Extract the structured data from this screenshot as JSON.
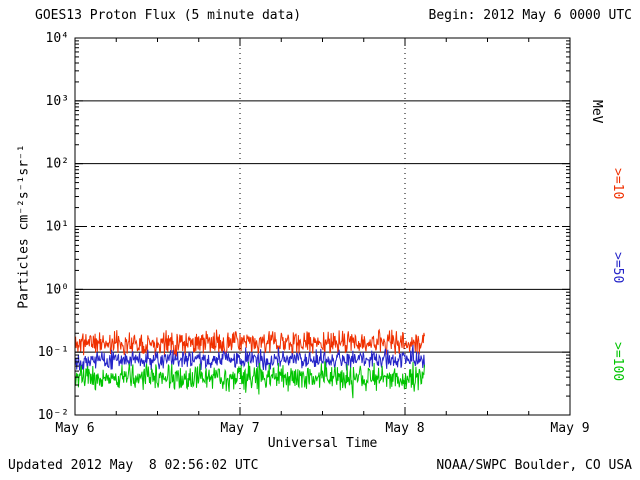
{
  "header": {
    "title": "GOES13 Proton Flux (5 minute data)",
    "begin_label": "Begin: 2012 May 6 0000 UTC"
  },
  "footer": {
    "updated": "Updated 2012 May  8 02:56:02 UTC",
    "source": "NOAA/SWPC Boulder, CO USA"
  },
  "chart_data": {
    "type": "line",
    "title": "GOES13 Proton Flux (5 minute data)",
    "xlabel": "Universal Time",
    "ylabel": "Particles cm⁻²s⁻¹sr⁻¹",
    "x_range_days": [
      0,
      3
    ],
    "ylim_log10": [
      -2,
      4
    ],
    "x_ticks": [
      {
        "label": "May 6",
        "day": 0
      },
      {
        "label": "May 7",
        "day": 1
      },
      {
        "label": "May 8",
        "day": 2
      },
      {
        "label": "May 9",
        "day": 3
      }
    ],
    "y_ticks": [
      {
        "label": "10⁴",
        "log": 4
      },
      {
        "label": "10³",
        "log": 3
      },
      {
        "label": "10²",
        "log": 2
      },
      {
        "label": "10¹",
        "log": 1
      },
      {
        "label": "10⁰",
        "log": 0
      },
      {
        "label": "10⁻¹",
        "log": -1
      },
      {
        "label": "10⁻²",
        "log": -2
      }
    ],
    "gridlines": [
      {
        "log": 3,
        "style": "solid"
      },
      {
        "log": 2,
        "style": "solid"
      },
      {
        "log": 1,
        "style": "dashed"
      },
      {
        "log": 0,
        "style": "solid"
      },
      {
        "log": -1,
        "style": "solid"
      }
    ],
    "vertical_gridline_days": [
      1,
      2
    ],
    "legend": [
      {
        "label": "MeV",
        "color": "#000000"
      },
      {
        "label": ">=10",
        "color": "#f03000"
      },
      {
        "label": ">=50",
        "color": "#2424c8"
      },
      {
        "label": ">=100",
        "color": "#00c400"
      }
    ],
    "series": [
      {
        "name": ">=10 MeV",
        "color": "#f03000",
        "approx_flux": 0.14,
        "base_log": -0.85,
        "noise_log": 0.22,
        "start_day": 0,
        "end_day": 2.12,
        "cadence_minutes": 5,
        "seed": 11
      },
      {
        "name": ">=50 MeV",
        "color": "#2424c8",
        "approx_flux": 0.075,
        "base_log": -1.12,
        "noise_log": 0.18,
        "start_day": 0,
        "end_day": 2.12,
        "cadence_minutes": 5,
        "seed": 22
      },
      {
        "name": ">=100 MeV",
        "color": "#00c400",
        "approx_flux": 0.04,
        "base_log": -1.4,
        "noise_log": 0.25,
        "start_day": 0,
        "end_day": 2.12,
        "cadence_minutes": 5,
        "seed": 33
      }
    ]
  }
}
